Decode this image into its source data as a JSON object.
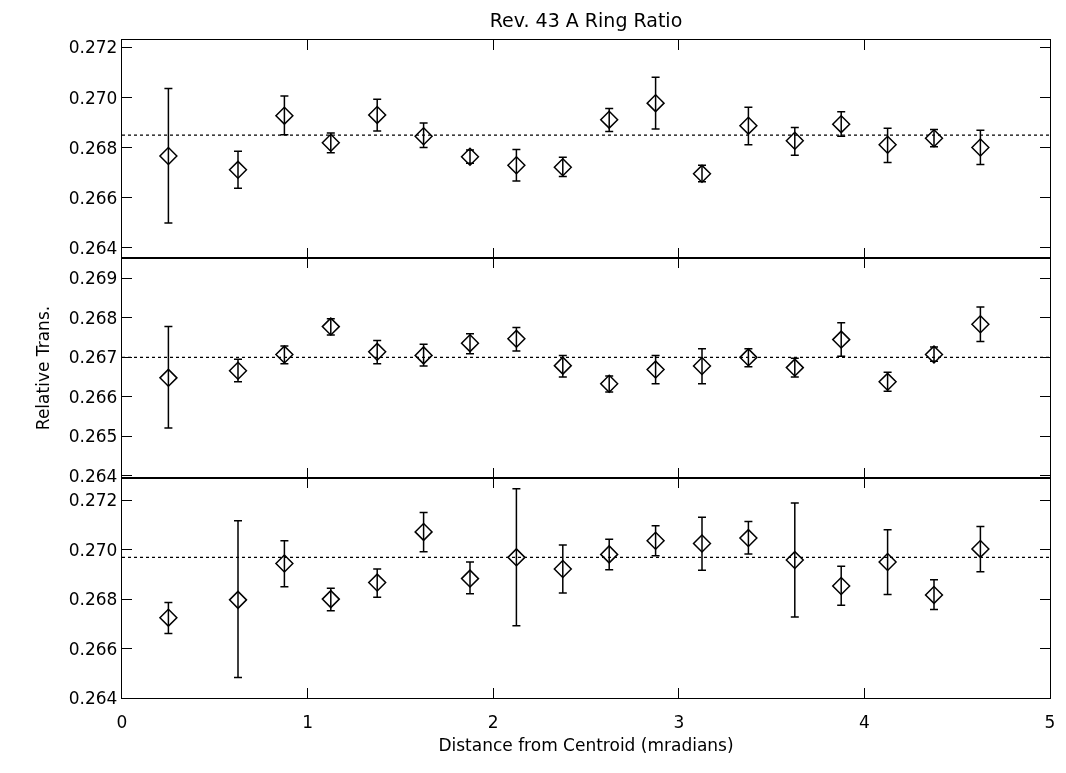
{
  "chart_data": [
    {
      "type": "scatter",
      "title": "Rev. 43 A Ring Ratio",
      "x": [
        0.25,
        0.625,
        0.875,
        1.125,
        1.375,
        1.625,
        1.875,
        2.125,
        2.375,
        2.625,
        2.875,
        3.125,
        3.375,
        3.625,
        3.875,
        4.125,
        4.375,
        4.625
      ],
      "series": [
        {
          "color": "#000000",
          "values": [
            0.26767,
            0.26712,
            0.26928,
            0.2682,
            0.26931,
            0.26846,
            0.26764,
            0.2673,
            0.26722,
            0.26912,
            0.26978,
            0.26696,
            0.26888,
            0.26828,
            0.26894,
            0.26812,
            0.26838,
            0.26801
          ],
          "errors": [
            [
              0.265,
              0.27036
            ],
            [
              0.26638,
              0.26786
            ],
            [
              0.26852,
              0.27007
            ],
            [
              0.2678,
              0.26859
            ],
            [
              0.26867,
              0.26994
            ],
            [
              0.26801,
              0.26899
            ],
            [
              0.26738,
              0.26791
            ],
            [
              0.26667,
              0.26793
            ],
            [
              0.26685,
              0.26762
            ],
            [
              0.26865,
              0.26957
            ],
            [
              0.26875,
              0.27081
            ],
            [
              0.26664,
              0.2673
            ],
            [
              0.26812,
              0.26962
            ],
            [
              0.2677,
              0.26881
            ],
            [
              0.26846,
              0.26944
            ],
            [
              0.26741,
              0.26878
            ],
            [
              0.26804,
              0.26873
            ],
            [
              0.26733,
              0.2687
            ]
          ]
        }
      ],
      "marker": "diamond",
      "ref_lines": [
        {
          "axis": "y",
          "value": 0.2685,
          "line_style": "dotted",
          "color": "#000000"
        }
      ],
      "xlim": [
        0,
        5
      ],
      "xticks": [
        0,
        1,
        2,
        3,
        4,
        5
      ],
      "ylim": [
        0.2636,
        0.2723
      ],
      "yticks": [
        0.264,
        0.266,
        0.268,
        {
          "value": 0.27,
          "label": "0.270"
        },
        0.272
      ],
      "tick_labels": "y",
      "grid": false
    },
    {
      "type": "scatter",
      "ylabel": "Relative Trans.",
      "x": [
        0.25,
        0.625,
        0.875,
        1.125,
        1.375,
        1.625,
        1.875,
        2.125,
        2.375,
        2.625,
        2.875,
        3.125,
        3.375,
        3.625,
        3.875,
        4.125,
        4.375,
        4.625
      ],
      "series": [
        {
          "color": "#000000",
          "values": [
            0.26648,
            0.26666,
            0.26707,
            0.26778,
            0.26714,
            0.26705,
            0.26736,
            0.26747,
            0.26679,
            0.26633,
            0.26669,
            0.26678,
            0.267,
            0.26674,
            0.26745,
            0.26638,
            0.26707,
            0.26784
          ],
          "errors": [
            [
              0.26521,
              0.26778
            ],
            [
              0.26638,
              0.26695
            ],
            [
              0.26684,
              0.26729
            ],
            [
              0.26757,
              0.26798
            ],
            [
              0.26684,
              0.26743
            ],
            [
              0.26678,
              0.26733
            ],
            [
              0.26709,
              0.2676
            ],
            [
              0.26716,
              0.26776
            ],
            [
              0.2665,
              0.26705
            ],
            [
              0.26612,
              0.26653
            ],
            [
              0.26633,
              0.26705
            ],
            [
              0.26633,
              0.26722
            ],
            [
              0.26676,
              0.26722
            ],
            [
              0.2665,
              0.26698
            ],
            [
              0.26703,
              0.26788
            ],
            [
              0.26614,
              0.26662
            ],
            [
              0.2669,
              0.26726
            ],
            [
              0.2674,
              0.26828
            ]
          ]
        }
      ],
      "marker": "diamond",
      "ref_lines": [
        {
          "axis": "y",
          "value": 0.267,
          "line_style": "dotted",
          "color": "#000000"
        }
      ],
      "xlim": [
        0,
        5
      ],
      "xticks": [
        0,
        1,
        2,
        3,
        4,
        5
      ],
      "ylim": [
        0.26394,
        0.26952
      ],
      "yticks": [
        0.264,
        0.265,
        0.266,
        0.267,
        0.268,
        0.269
      ],
      "tick_labels": "y",
      "grid": false
    },
    {
      "type": "scatter",
      "xlabel": "Distance from Centroid (mradians)",
      "x": [
        0.25,
        0.625,
        0.875,
        1.125,
        1.375,
        1.625,
        1.875,
        2.125,
        2.375,
        2.625,
        2.875,
        3.125,
        3.375,
        3.625,
        3.875,
        4.125,
        4.375,
        4.625
      ],
      "series": [
        {
          "color": "#000000",
          "values": [
            0.26725,
            0.26797,
            0.26944,
            0.268,
            0.26867,
            0.27072,
            0.26883,
            0.26969,
            0.26922,
            0.26981,
            0.27036,
            0.27025,
            0.27047,
            0.26958,
            0.26853,
            0.2695,
            0.26817,
            0.27003
          ],
          "errors": [
            [
              0.26661,
              0.26786
            ],
            [
              0.26483,
              0.27117
            ],
            [
              0.2685,
              0.27036
            ],
            [
              0.26753,
              0.26844
            ],
            [
              0.26808,
              0.26922
            ],
            [
              0.26992,
              0.2715
            ],
            [
              0.26822,
              0.2695
            ],
            [
              0.26692,
              0.27247
            ],
            [
              0.26825,
              0.27019
            ],
            [
              0.26919,
              0.27042
            ],
            [
              0.26975,
              0.27097
            ],
            [
              0.26917,
              0.27131
            ],
            [
              0.26983,
              0.27114
            ],
            [
              0.26728,
              0.27189
            ],
            [
              0.26775,
              0.26933
            ],
            [
              0.26819,
              0.27081
            ],
            [
              0.26758,
              0.26878
            ],
            [
              0.26911,
              0.27094
            ]
          ]
        }
      ],
      "marker": "diamond",
      "ref_lines": [
        {
          "axis": "y",
          "value": 0.26969,
          "line_style": "dotted",
          "color": "#000000"
        }
      ],
      "xlim": [
        0,
        5
      ],
      "xticks": [
        0,
        1,
        2,
        3,
        4,
        5
      ],
      "ylim": [
        0.264,
        0.2729
      ],
      "yticks": [
        0.264,
        0.266,
        0.268,
        {
          "value": 0.27,
          "label": "0.270"
        },
        0.272
      ],
      "grid": false
    }
  ]
}
